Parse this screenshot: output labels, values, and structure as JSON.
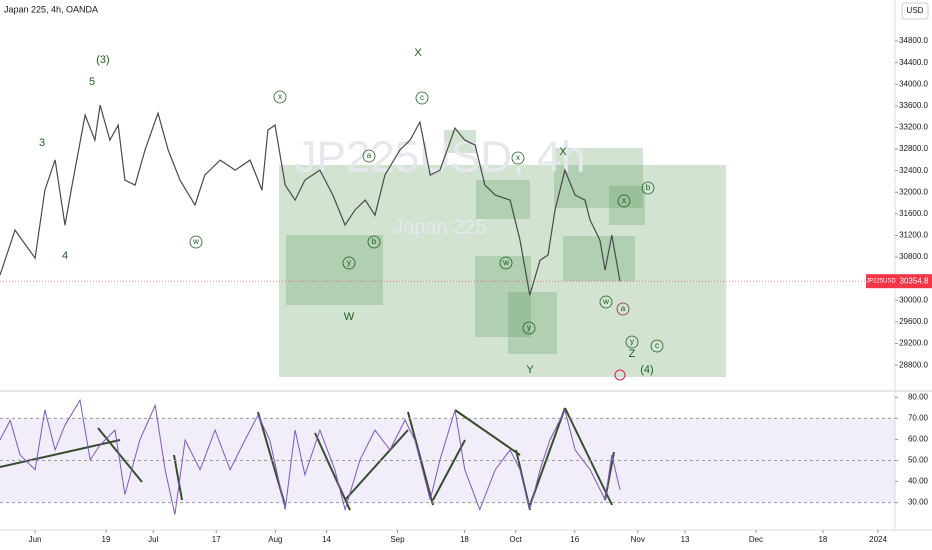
{
  "chart_data": {
    "type": "line",
    "title": "Japan 225, 4h, OANDA",
    "currency": "USD",
    "watermark": "JP225USD, 4h",
    "watermark_subtitle": "Japan 225",
    "symbol": "JP225USD",
    "last_price": {
      "value": 30354.8,
      "label": "30354.8"
    },
    "x": [
      -8.9,
      -5.1,
      0,
      2.5,
      5.1,
      7.6,
      9.4,
      12.7,
      15.2,
      16.5,
      19.0,
      21.1,
      22.8,
      25.4,
      27.9,
      31.2,
      33.8,
      36.8,
      40.6,
      43.1,
      47.0,
      50.8,
      54.6,
      57.6,
      59.1,
      60.9,
      63.5,
      66.0,
      68.5,
      72.3,
      75.6,
      78.7,
      81.2,
      83.8,
      86.3,
      88.8,
      92.6,
      95.2,
      97.7,
      100.3,
      102.8,
      106.6,
      109.1,
      111.7,
      114.2,
      116.8,
      120.6,
      123.1,
      125.6,
      128.2,
      130.2,
      132.0,
      134.5,
      137.1,
      139.6,
      140.9,
      143.4,
      144.7,
      146.4,
      148.5
    ],
    "series": [
      {
        "name": "JP225USD",
        "color": "#4a4a4a",
        "values": [
          30467,
          31300,
          30781,
          32041,
          32600,
          31393,
          32133,
          33430,
          32967,
          33615,
          32967,
          33244,
          32226,
          32133,
          32781,
          33467,
          32781,
          32226,
          31763,
          32318,
          32596,
          32411,
          32596,
          32041,
          33152,
          33244,
          32133,
          31856,
          32226,
          32411,
          31948,
          31393,
          31670,
          31856,
          31578,
          32318,
          32781,
          32967,
          33300,
          32318,
          32411,
          33189,
          32967,
          32874,
          32133,
          31948,
          31856,
          31115,
          30096,
          30745,
          30837,
          31670,
          32411,
          31948,
          31856,
          31485,
          31115,
          30559,
          31207,
          30354.8
        ]
      }
    ],
    "ylim": [
      28340,
      35560
    ],
    "yticks": [
      {
        "value": 28800,
        "label": "28800.0"
      },
      {
        "value": 29200,
        "label": "29200.0"
      },
      {
        "value": 29600,
        "label": "29600.0"
      },
      {
        "value": 30000,
        "label": "30000.0"
      },
      {
        "value": 30400,
        "label": "30400.0"
      },
      {
        "value": 30800,
        "label": "30800.0"
      },
      {
        "value": 31200,
        "label": "31200.0"
      },
      {
        "value": 31600,
        "label": "31600.0"
      },
      {
        "value": 32000,
        "label": "32000.0"
      },
      {
        "value": 32400,
        "label": "32400.0"
      },
      {
        "value": 32800,
        "label": "32800.0"
      },
      {
        "value": 33200,
        "label": "33200.0"
      },
      {
        "value": 33600,
        "label": "33600.0"
      },
      {
        "value": 34000,
        "label": "34000.0"
      },
      {
        "value": 34400,
        "label": "34400.0"
      },
      {
        "value": 34800,
        "label": "34800.0"
      }
    ],
    "xlim": [
      -8.9,
      218.3
    ],
    "xticks": [
      {
        "value": 0,
        "label": "Jun"
      },
      {
        "value": 18,
        "label": "19"
      },
      {
        "value": 30,
        "label": "Jul"
      },
      {
        "value": 46,
        "label": "17"
      },
      {
        "value": 61,
        "label": "Aug"
      },
      {
        "value": 74,
        "label": "14"
      },
      {
        "value": 92,
        "label": "Sep"
      },
      {
        "value": 109,
        "label": "18"
      },
      {
        "value": 122,
        "label": "Oct"
      },
      {
        "value": 137,
        "label": "16"
      },
      {
        "value": 153,
        "label": "Nov"
      },
      {
        "value": 165,
        "label": "13"
      },
      {
        "value": 183,
        "label": "Dec"
      },
      {
        "value": 200,
        "label": "18"
      },
      {
        "value": 214,
        "label": "2024"
      }
    ],
    "rsi": {
      "color": "#7e57c2",
      "band": [
        30,
        70
      ],
      "midline": 50,
      "x": [
        -8.9,
        -6.3,
        -3.8,
        0,
        2.5,
        5.1,
        7.6,
        11.4,
        14.0,
        16.5,
        20.3,
        22.8,
        26.6,
        30.5,
        33.0,
        35.5,
        38.1,
        41.9,
        45.7,
        49.5,
        53.3,
        56.6,
        59.6,
        63.5,
        66.0,
        68.5,
        72.3,
        76.1,
        78.7,
        82.5,
        86.3,
        90.1,
        93.9,
        96.4,
        100.3,
        102.8,
        106.6,
        109.1,
        112.9,
        116.8,
        120.6,
        123.1,
        125.6,
        128.2,
        130.7,
        134.5,
        137.1,
        140.9,
        144.7,
        146.4,
        148.5
      ],
      "values": [
        59.7,
        69,
        52.6,
        45.6,
        74,
        55,
        66.8,
        78.6,
        50.3,
        57.4,
        64.4,
        33.8,
        59.7,
        76.2,
        45.6,
        24.3,
        59.7,
        45.6,
        64.4,
        45.6,
        59.7,
        71.5,
        59.7,
        26.7,
        64.4,
        43.2,
        64.4,
        45.6,
        26.7,
        50.3,
        64.4,
        55,
        69.2,
        59.7,
        31.4,
        50.3,
        73.9,
        45.6,
        26.7,
        45.6,
        55,
        45.6,
        26.7,
        45.6,
        59.7,
        73.9,
        55,
        45.6,
        31.4,
        52.6,
        36.1
      ],
      "ylim": [
        17,
        82.5
      ],
      "yticks": [
        {
          "value": 30,
          "label": "30.00"
        },
        {
          "value": 40,
          "label": "40.00"
        },
        {
          "value": 50,
          "label": "50.00"
        },
        {
          "value": 60,
          "label": "60.00"
        },
        {
          "value": 70,
          "label": "70.00"
        },
        {
          "value": 80,
          "label": "80.00"
        }
      ]
    },
    "annotations": [
      "(3)",
      "5",
      "3",
      "4",
      "X",
      "X",
      "W",
      "Y",
      "Z",
      "(4)"
    ],
    "circled": [
      "x",
      "c",
      "a",
      "x",
      "w",
      "y",
      "b",
      "w",
      "y",
      "x",
      "b",
      "w",
      "a",
      "y",
      "c"
    ]
  }
}
